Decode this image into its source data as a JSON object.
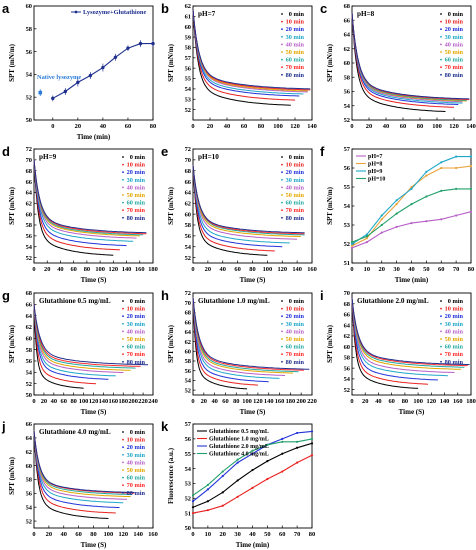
{
  "legend_minutes": [
    "0 min",
    "10 min",
    "20 min",
    "30 min",
    "40 min",
    "50 min",
    "60 min",
    "70 min",
    "80 min"
  ],
  "series_colors": [
    "#000000",
    "#e8211f",
    "#2233d9",
    "#1fa7c8",
    "#b65fc7",
    "#e3a600",
    "#21a9a1",
    "#ff2a2a",
    "#1f2f8e"
  ],
  "chart_data": [
    {
      "panel": "a",
      "type": "scatter",
      "title": "",
      "legend_position": "top-right",
      "xlabel": "Time (min)",
      "ylabel": "SPT (mN/m)",
      "xlim": [
        -15,
        80
      ],
      "ylim": [
        50,
        60
      ],
      "xticks": [
        0,
        20,
        40,
        60,
        80
      ],
      "yticks": [
        50,
        52,
        54,
        56,
        58,
        60
      ],
      "annotation": "Native lysozyme",
      "native_point": {
        "x": -10,
        "y": 52.4,
        "err": 0.3
      },
      "series": [
        {
          "name": "Lysozyme+Glutathione",
          "color": "#1f2f8e",
          "x": [
            0,
            10,
            20,
            30,
            40,
            50,
            60,
            70,
            80
          ],
          "y": [
            51.9,
            52.5,
            53.3,
            53.9,
            54.6,
            55.5,
            56.3,
            56.7,
            56.7
          ],
          "err": [
            0.25,
            0.3,
            0.35,
            0.3,
            0.35,
            0.3,
            0.25,
            0.3,
            0.3
          ]
        }
      ]
    },
    {
      "panel": "b",
      "type": "line",
      "title": "pH=7",
      "xlabel": "",
      "ylabel": "SPT (mN/m)",
      "xlim": [
        0,
        140
      ],
      "ylim": [
        51,
        62
      ],
      "xticks": [
        0,
        20,
        40,
        60,
        80,
        100,
        120,
        140
      ],
      "yticks": [
        52,
        53,
        54,
        55,
        56,
        57,
        58,
        59,
        60,
        61,
        62
      ],
      "legend": true,
      "legend_position": "right",
      "curves": {
        "start": 61.6,
        "tmax": [
          115,
          120,
          125,
          130,
          135,
          135,
          138,
          138,
          138
        ],
        "ends": [
          52.3,
          52.8,
          53.2,
          53.4,
          53.6,
          53.7,
          53.8,
          53.8,
          53.9
        ]
      }
    },
    {
      "panel": "c",
      "type": "line",
      "title": "pH=8",
      "xlabel": "",
      "ylabel": "SPT (mN/m)",
      "xlim": [
        0,
        140
      ],
      "ylim": [
        52,
        68
      ],
      "xticks": [
        0,
        20,
        40,
        60,
        80,
        100,
        120,
        140
      ],
      "yticks": [
        52,
        54,
        56,
        58,
        60,
        62,
        64,
        66,
        68
      ],
      "legend": true,
      "legend_position": "right",
      "curves": {
        "start": 67,
        "tmax": [
          110,
          120,
          125,
          130,
          130,
          135,
          135,
          138,
          138
        ],
        "ends": [
          53.0,
          53.6,
          54.0,
          54.2,
          54.4,
          54.5,
          54.6,
          54.7,
          54.8
        ]
      }
    },
    {
      "panel": "d",
      "type": "line",
      "title": "pH=9",
      "xlabel": "Time (S)",
      "ylabel": "SPT (mN/m)",
      "xlim": [
        0,
        180
      ],
      "ylim": [
        51,
        72
      ],
      "xticks": [
        0,
        20,
        40,
        60,
        80,
        100,
        120,
        140,
        160,
        180
      ],
      "yticks": [
        52,
        54,
        56,
        58,
        60,
        62,
        64,
        66,
        68,
        70,
        72
      ],
      "legend": true,
      "legend_position": "right",
      "curves": {
        "start": 70,
        "tmax": [
          120,
          130,
          140,
          150,
          155,
          160,
          165,
          170,
          170
        ],
        "ends": [
          52.2,
          53.2,
          54.0,
          54.8,
          55.4,
          55.8,
          56.0,
          56.2,
          56.4
        ]
      }
    },
    {
      "panel": "e",
      "type": "line",
      "title": "pH=10",
      "xlabel": "Time (S)",
      "ylabel": "SPT (mN/m)",
      "xlim": [
        0,
        160
      ],
      "ylim": [
        51,
        72
      ],
      "xticks": [
        0,
        20,
        40,
        60,
        80,
        100,
        120,
        140,
        160
      ],
      "yticks": [
        52,
        54,
        56,
        58,
        60,
        62,
        64,
        66,
        68,
        70,
        72
      ],
      "legend": true,
      "legend_position": "right",
      "curves": {
        "start": 69,
        "tmax": [
          100,
          110,
          120,
          130,
          140,
          145,
          150,
          150,
          150
        ],
        "ends": [
          52.2,
          53.0,
          53.8,
          54.5,
          55.2,
          55.7,
          56.0,
          56.2,
          56.4
        ]
      }
    },
    {
      "panel": "f",
      "type": "line",
      "title": "",
      "xlabel": "Time (min)",
      "ylabel": "SPT (mN/m)",
      "xlim": [
        0,
        80
      ],
      "ylim": [
        51,
        57
      ],
      "xticks": [
        0,
        10,
        20,
        30,
        40,
        50,
        60,
        70,
        80
      ],
      "yticks": [
        51,
        52,
        53,
        54,
        55,
        56,
        57
      ],
      "legend_position": "top-left",
      "series": [
        {
          "name": "pH=7",
          "color": "#b65fc7",
          "x": [
            0,
            10,
            20,
            30,
            40,
            50,
            60,
            70,
            80
          ],
          "y": [
            51.8,
            52.1,
            52.6,
            52.9,
            53.1,
            53.2,
            53.3,
            53.5,
            53.7
          ]
        },
        {
          "name": "pH=8",
          "color": "#e8a33a",
          "x": [
            0,
            10,
            20,
            30,
            40,
            50,
            60,
            70,
            80
          ],
          "y": [
            51.9,
            52.3,
            53.3,
            54.1,
            55.0,
            55.6,
            56.0,
            56.0,
            56.1
          ]
        },
        {
          "name": "pH=9",
          "color": "#1fa7c8",
          "x": [
            0,
            10,
            20,
            30,
            40,
            50,
            60,
            70,
            80
          ],
          "y": [
            52.0,
            52.5,
            53.5,
            54.3,
            54.9,
            55.8,
            56.3,
            56.6,
            56.6
          ]
        },
        {
          "name": "pH=10",
          "color": "#21a06a",
          "x": [
            0,
            10,
            20,
            30,
            40,
            50,
            60,
            70,
            80
          ],
          "y": [
            52.1,
            52.4,
            53.0,
            53.6,
            54.1,
            54.5,
            54.8,
            54.9,
            54.9
          ]
        }
      ]
    },
    {
      "panel": "g",
      "type": "line",
      "title": "Glutathione 0.5 mg/mL",
      "xlabel": "Time (S)",
      "ylabel": "SPT (mN/m)",
      "xlim": [
        0,
        240
      ],
      "ylim": [
        50,
        68
      ],
      "xticks": [
        0,
        20,
        40,
        60,
        80,
        100,
        120,
        140,
        160,
        180,
        200,
        220,
        240
      ],
      "yticks": [
        50,
        52,
        54,
        56,
        58,
        60,
        62,
        64,
        66,
        68
      ],
      "legend": true,
      "legend_position": "right",
      "curves": {
        "start": 66,
        "tmax": [
          100,
          125,
          150,
          165,
          180,
          195,
          205,
          215,
          230
        ],
        "ends": [
          51.0,
          51.8,
          52.6,
          53.2,
          53.8,
          54.2,
          54.6,
          54.9,
          55.2
        ]
      }
    },
    {
      "panel": "h",
      "type": "line",
      "title": "Glutathione 1.0 mg/mL",
      "xlabel": "Time (S)",
      "ylabel": "SPT (mN/m)",
      "xlim": [
        0,
        220
      ],
      "ylim": [
        51,
        72
      ],
      "xticks": [
        0,
        20,
        40,
        60,
        80,
        100,
        120,
        140,
        160,
        180,
        200,
        220
      ],
      "yticks": [
        52,
        54,
        56,
        58,
        60,
        62,
        64,
        66,
        68,
        70,
        72
      ],
      "legend": true,
      "legend_position": "right",
      "curves": {
        "start": 71,
        "tmax": [
          100,
          120,
          140,
          160,
          170,
          185,
          195,
          205,
          215
        ],
        "ends": [
          52.0,
          52.8,
          53.5,
          54.2,
          54.8,
          55.3,
          55.6,
          55.9,
          56.1
        ]
      }
    },
    {
      "panel": "i",
      "type": "line",
      "title": "Glutathione 2.0 mg/mL",
      "xlabel": "Time (S)",
      "ylabel": "SPT (mN/m)",
      "xlim": [
        0,
        180
      ],
      "ylim": [
        51,
        70
      ],
      "xticks": [
        0,
        20,
        40,
        60,
        80,
        100,
        120,
        140,
        160,
        180
      ],
      "yticks": [
        52,
        54,
        56,
        58,
        60,
        62,
        64,
        66,
        68,
        70
      ],
      "legend": true,
      "legend_position": "right",
      "curves": {
        "start": 69,
        "tmax": [
          100,
          115,
          130,
          145,
          155,
          165,
          170,
          175,
          178
        ],
        "ends": [
          52.0,
          52.8,
          53.6,
          54.4,
          55.0,
          55.6,
          56.0,
          56.3,
          56.5
        ]
      }
    },
    {
      "panel": "j",
      "type": "line",
      "title": "Glutathione 4.0 mg/mL",
      "xlabel": "Time (S)",
      "ylabel": "SPT (mN/m)",
      "xlim": [
        0,
        160
      ],
      "ylim": [
        51,
        66
      ],
      "xticks": [
        0,
        20,
        40,
        60,
        80,
        100,
        120,
        140,
        160
      ],
      "yticks": [
        52,
        54,
        56,
        58,
        60,
        62,
        64,
        66
      ],
      "legend": true,
      "legend_position": "right",
      "curves": {
        "start": 65,
        "tmax": [
          100,
          110,
          115,
          120,
          125,
          130,
          132,
          135,
          135
        ],
        "ends": [
          52.2,
          53.0,
          53.8,
          54.5,
          55.0,
          55.4,
          55.7,
          55.9,
          56.0
        ]
      }
    },
    {
      "panel": "k",
      "type": "line",
      "title": "",
      "xlabel": "Time (min)",
      "ylabel": "Fluorescence (a.u.)",
      "xlim": [
        0,
        80
      ],
      "ylim": [
        50,
        57
      ],
      "xticks": [
        0,
        10,
        20,
        30,
        40,
        50,
        60,
        70,
        80
      ],
      "yticks": [
        50,
        51,
        52,
        53,
        54,
        55,
        56,
        57
      ],
      "legend_position": "top-left",
      "series": [
        {
          "name": "Glutathione 0.5 mg/mL",
          "color": "#000000",
          "x": [
            0,
            10,
            20,
            30,
            40,
            50,
            60,
            70,
            80
          ],
          "y": [
            51.4,
            51.8,
            52.4,
            53.2,
            53.9,
            54.5,
            55.0,
            55.4,
            55.7
          ]
        },
        {
          "name": "Glutathione 1.0 mg/mL",
          "color": "#e8211f",
          "x": [
            0,
            10,
            20,
            30,
            40,
            50,
            60,
            70,
            80
          ],
          "y": [
            51.0,
            51.2,
            51.5,
            52.1,
            52.7,
            53.3,
            53.8,
            54.4,
            54.9
          ]
        },
        {
          "name": "Glutathione 2.0 mg/mL",
          "color": "#2233d9",
          "x": [
            0,
            10,
            20,
            30,
            40,
            50,
            60,
            70,
            80
          ],
          "y": [
            51.8,
            52.6,
            53.5,
            54.4,
            55.0,
            55.6,
            56.0,
            56.4,
            56.5
          ]
        },
        {
          "name": "Glutathione 4.0 mg/mL",
          "color": "#21a06a",
          "x": [
            0,
            10,
            20,
            30,
            40,
            50,
            60,
            70,
            80
          ],
          "y": [
            52.2,
            52.9,
            53.8,
            54.6,
            55.2,
            55.6,
            55.8,
            55.8,
            56.0
          ]
        }
      ]
    }
  ]
}
